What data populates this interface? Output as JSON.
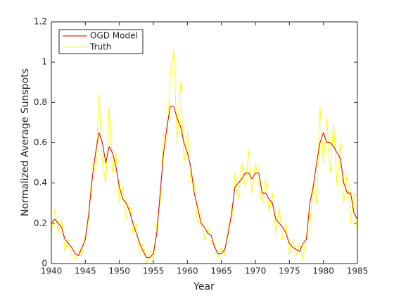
{
  "chart_data": {
    "type": "line",
    "xlabel": "Year",
    "ylabel": "Normalized Average Sunspots",
    "x": [
      1940,
      1940.5,
      1941,
      1941.5,
      1942,
      1942.5,
      1943,
      1943.5,
      1944,
      1944.5,
      1945,
      1945.5,
      1946,
      1946.5,
      1947,
      1947.5,
      1948,
      1948.5,
      1949,
      1949.5,
      1950,
      1950.5,
      1951,
      1951.5,
      1952,
      1952.5,
      1953,
      1953.5,
      1954,
      1954.5,
      1955,
      1955.5,
      1956,
      1956.5,
      1957,
      1957.5,
      1958,
      1958.5,
      1959,
      1959.5,
      1960,
      1960.5,
      1961,
      1961.5,
      1962,
      1962.5,
      1963,
      1963.5,
      1964,
      1964.5,
      1965,
      1965.5,
      1966,
      1966.5,
      1967,
      1967.5,
      1968,
      1968.5,
      1969,
      1969.5,
      1970,
      1970.5,
      1971,
      1971.5,
      1972,
      1972.5,
      1973,
      1973.5,
      1974,
      1974.5,
      1975,
      1975.5,
      1976,
      1976.5,
      1977,
      1977.5,
      1978,
      1978.5,
      1979,
      1979.5,
      1980,
      1980.5,
      1981,
      1981.5,
      1982,
      1982.5,
      1983,
      1983.5,
      1984,
      1984.5,
      1985
    ],
    "series": [
      {
        "name": "OGD Model",
        "color": "#d40000",
        "values": [
          0.2,
          0.22,
          0.2,
          0.18,
          0.12,
          0.1,
          0.08,
          0.05,
          0.04,
          0.08,
          0.12,
          0.25,
          0.42,
          0.55,
          0.65,
          0.6,
          0.5,
          0.58,
          0.55,
          0.48,
          0.38,
          0.32,
          0.3,
          0.26,
          0.2,
          0.15,
          0.1,
          0.06,
          0.03,
          0.03,
          0.05,
          0.15,
          0.35,
          0.55,
          0.68,
          0.78,
          0.78,
          0.72,
          0.68,
          0.6,
          0.55,
          0.48,
          0.35,
          0.28,
          0.2,
          0.18,
          0.15,
          0.14,
          0.08,
          0.05,
          0.05,
          0.07,
          0.15,
          0.25,
          0.38,
          0.4,
          0.42,
          0.45,
          0.45,
          0.42,
          0.45,
          0.45,
          0.35,
          0.35,
          0.32,
          0.3,
          0.22,
          0.2,
          0.18,
          0.15,
          0.1,
          0.08,
          0.07,
          0.06,
          0.1,
          0.12,
          0.3,
          0.38,
          0.5,
          0.6,
          0.65,
          0.6,
          0.6,
          0.58,
          0.55,
          0.52,
          0.4,
          0.35,
          0.35,
          0.25,
          0.22
        ]
      },
      {
        "name": "Truth",
        "color": "#ffff00",
        "values": [
          0.15,
          0.27,
          0.15,
          0.22,
          0.06,
          0.12,
          0.05,
          0.02,
          0.06,
          0.04,
          0.15,
          0.2,
          0.5,
          0.45,
          0.84,
          0.5,
          0.4,
          0.78,
          0.45,
          0.55,
          0.3,
          0.38,
          0.22,
          0.3,
          0.15,
          0.2,
          0.05,
          0.1,
          0.0,
          0.06,
          0.02,
          0.2,
          0.3,
          0.65,
          0.6,
          0.95,
          1.06,
          0.6,
          0.9,
          0.5,
          0.65,
          0.4,
          0.4,
          0.2,
          0.25,
          0.12,
          0.18,
          0.1,
          0.1,
          0.03,
          0.08,
          0.04,
          0.2,
          0.2,
          0.45,
          0.32,
          0.5,
          0.38,
          0.56,
          0.35,
          0.5,
          0.4,
          0.3,
          0.42,
          0.26,
          0.35,
          0.15,
          0.28,
          0.12,
          0.2,
          0.05,
          0.12,
          0.04,
          0.1,
          0.02,
          0.15,
          0.18,
          0.4,
          0.3,
          0.78,
          0.5,
          0.72,
          0.45,
          0.7,
          0.38,
          0.6,
          0.3,
          0.45,
          0.2,
          0.35,
          0.14
        ]
      }
    ],
    "xlim": [
      1940,
      1985
    ],
    "xticks": [
      1940,
      1945,
      1950,
      1955,
      1960,
      1965,
      1970,
      1975,
      1980,
      1985
    ],
    "ylim": [
      0,
      1.2
    ],
    "yticks": [
      0,
      0.2,
      0.4,
      0.6,
      0.8,
      1,
      1.2
    ],
    "legend": "upper left"
  }
}
